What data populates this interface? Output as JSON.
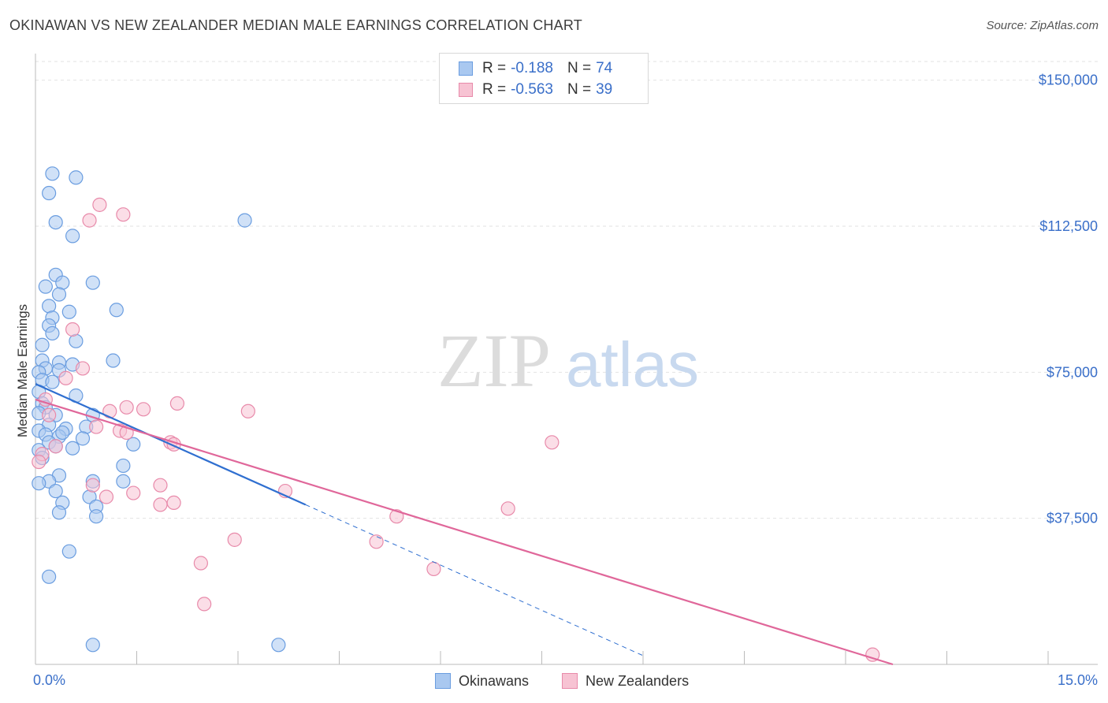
{
  "title": "OKINAWAN VS NEW ZEALANDER MEDIAN MALE EARNINGS CORRELATION CHART",
  "source": "Source: ZipAtlas.com",
  "watermark": {
    "zip": "ZIP",
    "atlas": "atlas"
  },
  "legend": {
    "rows": [
      {
        "r_label": "R =",
        "r_value": "-0.188",
        "n_label": "N =",
        "n_value": "74",
        "color": "#a9c8f0",
        "border": "#6a9de0"
      },
      {
        "r_label": "R =",
        "r_value": "-0.563",
        "n_label": "N =",
        "n_value": "39",
        "color": "#f7c3d3",
        "border": "#e88aaa"
      }
    ]
  },
  "bottom_legend": [
    {
      "label": "Okinawans",
      "color": "#a9c8f0",
      "border": "#6a9de0"
    },
    {
      "label": "New Zealanders",
      "color": "#f7c3d3",
      "border": "#e88aaa"
    }
  ],
  "chart_data": {
    "type": "scatter",
    "ylabel": "Median Male Earnings",
    "xlim": [
      0,
      15
    ],
    "ylim": [
      0,
      155000
    ],
    "x_tick_labels": [
      "0.0%",
      "15.0%"
    ],
    "y_ticks": [
      {
        "value": 37500,
        "label": "$37,500"
      },
      {
        "value": 75000,
        "label": "$75,000"
      },
      {
        "value": 112500,
        "label": "$112,500"
      },
      {
        "value": 150000,
        "label": "$150,000"
      }
    ],
    "series": [
      {
        "name": "Okinawans",
        "color": "#6a9de0",
        "fill": "#a9c8f0",
        "trend": {
          "x0": 0.0,
          "y0": 72000,
          "x1": 4.0,
          "y1": 41000,
          "dash_x1": 9.0
        },
        "points": [
          [
            0.25,
            126000
          ],
          [
            0.6,
            125000
          ],
          [
            0.2,
            121000
          ],
          [
            0.3,
            113500
          ],
          [
            0.55,
            110000
          ],
          [
            3.1,
            114000
          ],
          [
            0.3,
            100000
          ],
          [
            0.15,
            97000
          ],
          [
            0.4,
            98000
          ],
          [
            0.85,
            98000
          ],
          [
            0.35,
            95000
          ],
          [
            0.2,
            92000
          ],
          [
            1.2,
            91000
          ],
          [
            0.5,
            90500
          ],
          [
            0.25,
            89000
          ],
          [
            0.2,
            87000
          ],
          [
            0.25,
            85000
          ],
          [
            0.6,
            83000
          ],
          [
            0.1,
            82000
          ],
          [
            1.15,
            78000
          ],
          [
            0.1,
            78000
          ],
          [
            0.35,
            77500
          ],
          [
            0.55,
            77000
          ],
          [
            0.15,
            76000
          ],
          [
            0.05,
            75000
          ],
          [
            0.35,
            75500
          ],
          [
            0.1,
            73000
          ],
          [
            0.25,
            72500
          ],
          [
            0.05,
            70000
          ],
          [
            0.6,
            69000
          ],
          [
            0.1,
            67000
          ],
          [
            0.15,
            66000
          ],
          [
            0.3,
            64000
          ],
          [
            0.85,
            64000
          ],
          [
            0.05,
            64500
          ],
          [
            0.2,
            61500
          ],
          [
            0.45,
            60500
          ],
          [
            0.75,
            61000
          ],
          [
            0.05,
            60000
          ],
          [
            0.15,
            59000
          ],
          [
            0.35,
            58500
          ],
          [
            0.4,
            59500
          ],
          [
            0.7,
            58000
          ],
          [
            0.2,
            57000
          ],
          [
            0.3,
            56000
          ],
          [
            0.55,
            55500
          ],
          [
            1.45,
            56500
          ],
          [
            0.05,
            55000
          ],
          [
            0.1,
            53000
          ],
          [
            1.3,
            51000
          ],
          [
            0.35,
            48500
          ],
          [
            0.2,
            47000
          ],
          [
            0.85,
            47000
          ],
          [
            1.3,
            47000
          ],
          [
            0.05,
            46500
          ],
          [
            0.3,
            44500
          ],
          [
            0.8,
            43000
          ],
          [
            0.4,
            41500
          ],
          [
            0.9,
            40500
          ],
          [
            0.35,
            39000
          ],
          [
            0.9,
            38000
          ],
          [
            0.5,
            29000
          ],
          [
            0.2,
            22500
          ],
          [
            0.85,
            5000
          ],
          [
            3.6,
            5000
          ]
        ]
      },
      {
        "name": "New Zealanders",
        "color": "#e88aaa",
        "fill": "#f7c3d3",
        "trend": {
          "x0": 0.0,
          "y0": 68000,
          "x1": 12.7,
          "y1": 0
        },
        "points": [
          [
            0.95,
            118000
          ],
          [
            0.8,
            114000
          ],
          [
            1.3,
            115500
          ],
          [
            0.55,
            86000
          ],
          [
            0.7,
            76000
          ],
          [
            0.45,
            73500
          ],
          [
            0.15,
            68000
          ],
          [
            0.2,
            64000
          ],
          [
            1.1,
            65000
          ],
          [
            1.6,
            65500
          ],
          [
            1.35,
            66000
          ],
          [
            2.1,
            67000
          ],
          [
            3.15,
            65000
          ],
          [
            0.9,
            61000
          ],
          [
            1.25,
            60000
          ],
          [
            1.35,
            59500
          ],
          [
            2.0,
            57000
          ],
          [
            2.05,
            56500
          ],
          [
            7.65,
            57000
          ],
          [
            0.3,
            56000
          ],
          [
            0.1,
            54000
          ],
          [
            0.05,
            52000
          ],
          [
            1.85,
            46000
          ],
          [
            0.85,
            46000
          ],
          [
            1.05,
            43000
          ],
          [
            1.45,
            44000
          ],
          [
            3.7,
            44500
          ],
          [
            2.05,
            41500
          ],
          [
            1.85,
            41000
          ],
          [
            7.0,
            40000
          ],
          [
            5.35,
            38000
          ],
          [
            2.95,
            32000
          ],
          [
            5.05,
            31500
          ],
          [
            2.45,
            26000
          ],
          [
            5.9,
            24500
          ],
          [
            2.5,
            15500
          ],
          [
            12.4,
            2500
          ]
        ]
      }
    ]
  }
}
